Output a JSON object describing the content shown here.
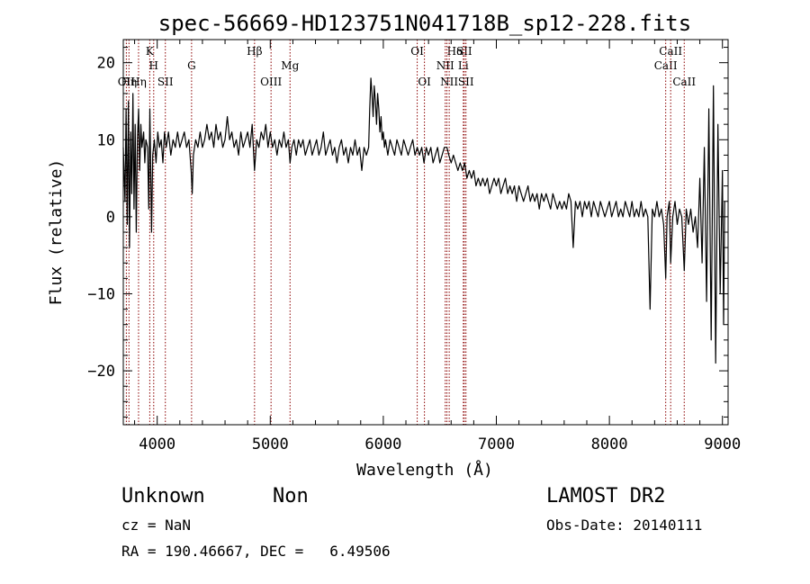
{
  "chart_data": {
    "type": "line",
    "title": "spec-56669-HD123751N041718B_sp12-228.fits",
    "xlabel": "Wavelength (Å)",
    "ylabel": "Flux (relative)",
    "xlim": [
      3700,
      9050
    ],
    "ylim": [
      -27,
      23
    ],
    "xticks": [
      4000,
      5000,
      6000,
      7000,
      8000,
      9000
    ],
    "yticks": [
      -20,
      -10,
      0,
      10,
      20
    ],
    "grid": false,
    "series": [
      {
        "color": "#000000",
        "points": [
          [
            3700,
            9
          ],
          [
            3715,
            2
          ],
          [
            3725,
            14
          ],
          [
            3735,
            -1
          ],
          [
            3745,
            15
          ],
          [
            3755,
            -4
          ],
          [
            3765,
            11
          ],
          [
            3775,
            3
          ],
          [
            3785,
            16
          ],
          [
            3795,
            1
          ],
          [
            3805,
            12
          ],
          [
            3815,
            -2
          ],
          [
            3825,
            10
          ],
          [
            3835,
            14
          ],
          [
            3845,
            6
          ],
          [
            3855,
            12
          ],
          [
            3865,
            9
          ],
          [
            3880,
            11
          ],
          [
            3890,
            7
          ],
          [
            3900,
            10
          ],
          [
            3915,
            9
          ],
          [
            3925,
            1
          ],
          [
            3935,
            14
          ],
          [
            3950,
            -2
          ],
          [
            3960,
            8
          ],
          [
            3975,
            10
          ],
          [
            3990,
            7
          ],
          [
            4005,
            11
          ],
          [
            4020,
            9
          ],
          [
            4035,
            10
          ],
          [
            4050,
            7
          ],
          [
            4065,
            11
          ],
          [
            4080,
            9
          ],
          [
            4100,
            11
          ],
          [
            4120,
            8
          ],
          [
            4140,
            10
          ],
          [
            4160,
            9
          ],
          [
            4180,
            11
          ],
          [
            4200,
            9
          ],
          [
            4220,
            10
          ],
          [
            4240,
            11
          ],
          [
            4260,
            9
          ],
          [
            4280,
            10
          ],
          [
            4300,
            6
          ],
          [
            4310,
            3
          ],
          [
            4320,
            8
          ],
          [
            4340,
            10
          ],
          [
            4360,
            9
          ],
          [
            4380,
            11
          ],
          [
            4400,
            9
          ],
          [
            4420,
            10
          ],
          [
            4440,
            12
          ],
          [
            4460,
            10
          ],
          [
            4480,
            11
          ],
          [
            4500,
            9
          ],
          [
            4520,
            12
          ],
          [
            4540,
            10
          ],
          [
            4560,
            11
          ],
          [
            4580,
            9
          ],
          [
            4600,
            10
          ],
          [
            4620,
            13
          ],
          [
            4640,
            10
          ],
          [
            4660,
            11
          ],
          [
            4680,
            9
          ],
          [
            4700,
            10
          ],
          [
            4720,
            8
          ],
          [
            4740,
            11
          ],
          [
            4760,
            9
          ],
          [
            4780,
            10
          ],
          [
            4800,
            11
          ],
          [
            4820,
            9
          ],
          [
            4840,
            12
          ],
          [
            4861,
            6
          ],
          [
            4880,
            10
          ],
          [
            4900,
            9
          ],
          [
            4920,
            11
          ],
          [
            4940,
            10
          ],
          [
            4960,
            12
          ],
          [
            4980,
            9
          ],
          [
            5000,
            11
          ],
          [
            5020,
            9
          ],
          [
            5040,
            10
          ],
          [
            5060,
            8
          ],
          [
            5080,
            10
          ],
          [
            5100,
            9
          ],
          [
            5120,
            11
          ],
          [
            5140,
            9
          ],
          [
            5160,
            10
          ],
          [
            5175,
            7
          ],
          [
            5190,
            9
          ],
          [
            5210,
            10
          ],
          [
            5230,
            8
          ],
          [
            5250,
            10
          ],
          [
            5270,
            9
          ],
          [
            5290,
            10
          ],
          [
            5310,
            8
          ],
          [
            5330,
            9
          ],
          [
            5350,
            10
          ],
          [
            5370,
            8
          ],
          [
            5390,
            9
          ],
          [
            5410,
            10
          ],
          [
            5430,
            8
          ],
          [
            5450,
            9
          ],
          [
            5470,
            11
          ],
          [
            5490,
            8
          ],
          [
            5510,
            9
          ],
          [
            5530,
            10
          ],
          [
            5550,
            8
          ],
          [
            5570,
            9
          ],
          [
            5590,
            7
          ],
          [
            5610,
            9
          ],
          [
            5630,
            10
          ],
          [
            5650,
            8
          ],
          [
            5670,
            9
          ],
          [
            5690,
            7
          ],
          [
            5710,
            9
          ],
          [
            5730,
            8
          ],
          [
            5750,
            10
          ],
          [
            5770,
            8
          ],
          [
            5790,
            9
          ],
          [
            5810,
            6
          ],
          [
            5830,
            9
          ],
          [
            5850,
            8
          ],
          [
            5870,
            9
          ],
          [
            5880,
            14
          ],
          [
            5890,
            18
          ],
          [
            5900,
            16
          ],
          [
            5910,
            13
          ],
          [
            5920,
            17
          ],
          [
            5930,
            15
          ],
          [
            5940,
            12
          ],
          [
            5950,
            16
          ],
          [
            5960,
            14
          ],
          [
            5970,
            11
          ],
          [
            5980,
            13
          ],
          [
            5990,
            10
          ],
          [
            6000,
            11
          ],
          [
            6010,
            9
          ],
          [
            6020,
            10
          ],
          [
            6040,
            8
          ],
          [
            6060,
            10
          ],
          [
            6080,
            9
          ],
          [
            6100,
            8
          ],
          [
            6120,
            10
          ],
          [
            6140,
            9
          ],
          [
            6160,
            8
          ],
          [
            6180,
            10
          ],
          [
            6200,
            9
          ],
          [
            6220,
            8
          ],
          [
            6240,
            9
          ],
          [
            6260,
            10
          ],
          [
            6280,
            8
          ],
          [
            6300,
            9
          ],
          [
            6320,
            8
          ],
          [
            6340,
            9
          ],
          [
            6360,
            7
          ],
          [
            6380,
            9
          ],
          [
            6400,
            8
          ],
          [
            6420,
            9
          ],
          [
            6440,
            7
          ],
          [
            6460,
            8
          ],
          [
            6480,
            9
          ],
          [
            6500,
            7
          ],
          [
            6520,
            8
          ],
          [
            6540,
            9
          ],
          [
            6563,
            9
          ],
          [
            6580,
            8
          ],
          [
            6600,
            7
          ],
          [
            6620,
            8
          ],
          [
            6640,
            7
          ],
          [
            6660,
            6
          ],
          [
            6680,
            7
          ],
          [
            6700,
            6
          ],
          [
            6720,
            7
          ],
          [
            6740,
            5
          ],
          [
            6760,
            6
          ],
          [
            6780,
            5
          ],
          [
            6800,
            6
          ],
          [
            6820,
            4
          ],
          [
            6840,
            5
          ],
          [
            6860,
            4
          ],
          [
            6880,
            5
          ],
          [
            6900,
            4
          ],
          [
            6920,
            5
          ],
          [
            6940,
            3
          ],
          [
            6960,
            4
          ],
          [
            6980,
            5
          ],
          [
            7000,
            4
          ],
          [
            7020,
            5
          ],
          [
            7040,
            3
          ],
          [
            7060,
            4
          ],
          [
            7080,
            5
          ],
          [
            7100,
            3
          ],
          [
            7120,
            4
          ],
          [
            7140,
            3
          ],
          [
            7160,
            4
          ],
          [
            7180,
            2
          ],
          [
            7200,
            4
          ],
          [
            7220,
            3
          ],
          [
            7240,
            2
          ],
          [
            7260,
            3
          ],
          [
            7280,
            4
          ],
          [
            7300,
            2
          ],
          [
            7320,
            3
          ],
          [
            7340,
            2
          ],
          [
            7360,
            3
          ],
          [
            7380,
            1
          ],
          [
            7400,
            3
          ],
          [
            7420,
            2
          ],
          [
            7440,
            3
          ],
          [
            7460,
            2
          ],
          [
            7480,
            1
          ],
          [
            7500,
            3
          ],
          [
            7520,
            2
          ],
          [
            7540,
            1
          ],
          [
            7560,
            2
          ],
          [
            7580,
            1
          ],
          [
            7600,
            2
          ],
          [
            7620,
            1
          ],
          [
            7640,
            3
          ],
          [
            7660,
            2
          ],
          [
            7680,
            -4
          ],
          [
            7700,
            2
          ],
          [
            7720,
            1
          ],
          [
            7740,
            2
          ],
          [
            7760,
            0
          ],
          [
            7780,
            2
          ],
          [
            7800,
            1
          ],
          [
            7820,
            2
          ],
          [
            7840,
            0
          ],
          [
            7860,
            2
          ],
          [
            7880,
            1
          ],
          [
            7900,
            0
          ],
          [
            7920,
            2
          ],
          [
            7940,
            1
          ],
          [
            7960,
            0
          ],
          [
            7980,
            1
          ],
          [
            8000,
            2
          ],
          [
            8020,
            0
          ],
          [
            8040,
            1
          ],
          [
            8060,
            2
          ],
          [
            8080,
            0
          ],
          [
            8100,
            1
          ],
          [
            8120,
            0
          ],
          [
            8140,
            2
          ],
          [
            8160,
            1
          ],
          [
            8180,
            0
          ],
          [
            8200,
            2
          ],
          [
            8220,
            0
          ],
          [
            8240,
            1
          ],
          [
            8260,
            0
          ],
          [
            8280,
            2
          ],
          [
            8300,
            0
          ],
          [
            8320,
            1
          ],
          [
            8340,
            0
          ],
          [
            8360,
            -12
          ],
          [
            8380,
            1
          ],
          [
            8400,
            0
          ],
          [
            8420,
            2
          ],
          [
            8440,
            0
          ],
          [
            8460,
            1
          ],
          [
            8480,
            -1
          ],
          [
            8498,
            -8
          ],
          [
            8510,
            0
          ],
          [
            8530,
            2
          ],
          [
            8542,
            -6
          ],
          [
            8560,
            0
          ],
          [
            8580,
            2
          ],
          [
            8600,
            -1
          ],
          [
            8620,
            1
          ],
          [
            8640,
            0
          ],
          [
            8662,
            -7
          ],
          [
            8680,
            1
          ],
          [
            8700,
            -1
          ],
          [
            8720,
            1
          ],
          [
            8740,
            -2
          ],
          [
            8760,
            0
          ],
          [
            8780,
            -4
          ],
          [
            8800,
            5
          ],
          [
            8820,
            -6
          ],
          [
            8840,
            9
          ],
          [
            8860,
            -11
          ],
          [
            8880,
            14
          ],
          [
            8900,
            -16
          ],
          [
            8920,
            17
          ],
          [
            8940,
            -19
          ],
          [
            8960,
            12
          ],
          [
            8980,
            -10
          ],
          [
            9000,
            6
          ],
          [
            9010,
            -14
          ],
          [
            9020,
            2
          ]
        ]
      }
    ],
    "line_color": "#8b0000",
    "lines": [
      {
        "x": 3727,
        "label": "OII",
        "tier": 3,
        "anchor": "middle"
      },
      {
        "x": 3750,
        "label": "Hη",
        "tier": 2,
        "anchor": "middle"
      },
      {
        "x": 3835,
        "label": "Hη",
        "tier": 2,
        "anchor": "middle"
      },
      {
        "x": 3934,
        "label": "K",
        "tier": 0,
        "anchor": "middle"
      },
      {
        "x": 3969,
        "label": "H",
        "tier": 1,
        "anchor": "middle"
      },
      {
        "x": 4072,
        "label": "SII",
        "tier": 3,
        "anchor": "middle"
      },
      {
        "x": 4304,
        "label": "G",
        "tier": 1,
        "anchor": "middle"
      },
      {
        "x": 4861,
        "label": "Hβ",
        "tier": 0,
        "anchor": "middle"
      },
      {
        "x": 5007,
        "label": "OIII",
        "tier": 2,
        "anchor": "middle"
      },
      {
        "x": 5175,
        "label": "Mg",
        "tier": 1,
        "anchor": "middle"
      },
      {
        "x": 6300,
        "label": "OI",
        "tier": 0,
        "anchor": "middle"
      },
      {
        "x": 6364,
        "label": "OI",
        "tier": 2,
        "anchor": "middle"
      },
      {
        "x": 6548,
        "label": "NII",
        "tier": 1,
        "anchor": "middle"
      },
      {
        "x": 6563,
        "label": "Hα",
        "tier": 0,
        "anchor": "start"
      },
      {
        "x": 6583,
        "label": "NII",
        "tier": 2,
        "anchor": "middle"
      },
      {
        "x": 6708,
        "label": "Li",
        "tier": 1,
        "anchor": "middle"
      },
      {
        "x": 6716,
        "label": "SII",
        "tier": 0,
        "anchor": "middle"
      },
      {
        "x": 6731,
        "label": "SII",
        "tier": 2,
        "anchor": "middle"
      },
      {
        "x": 8498,
        "label": "CaII",
        "tier": 1,
        "anchor": "middle"
      },
      {
        "x": 8542,
        "label": "CaII",
        "tier": 0,
        "anchor": "middle"
      },
      {
        "x": 8662,
        "label": "CaII",
        "tier": 2,
        "anchor": "middle"
      }
    ]
  },
  "footer": {
    "object_class": "Unknown",
    "subclass": "Non",
    "survey": "LAMOST DR2",
    "cz": "cz = NaN",
    "obs_date": "Obs-Date: 20140111",
    "coords": "RA = 190.46667, DEC =   6.49506"
  }
}
